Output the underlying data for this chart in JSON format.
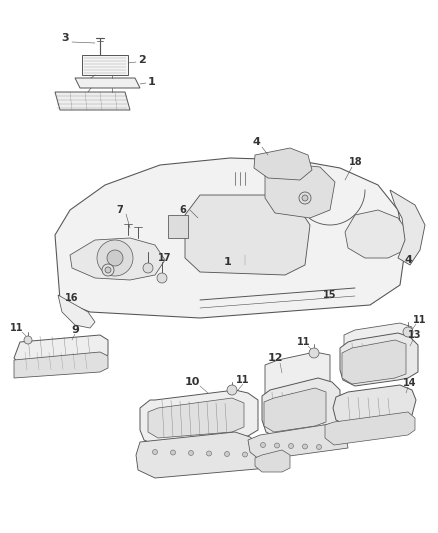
{
  "background_color": "#ffffff",
  "line_color": "#555555",
  "label_color": "#222222",
  "lw": 0.7,
  "fig_w": 4.38,
  "fig_h": 5.33,
  "dpi": 100
}
